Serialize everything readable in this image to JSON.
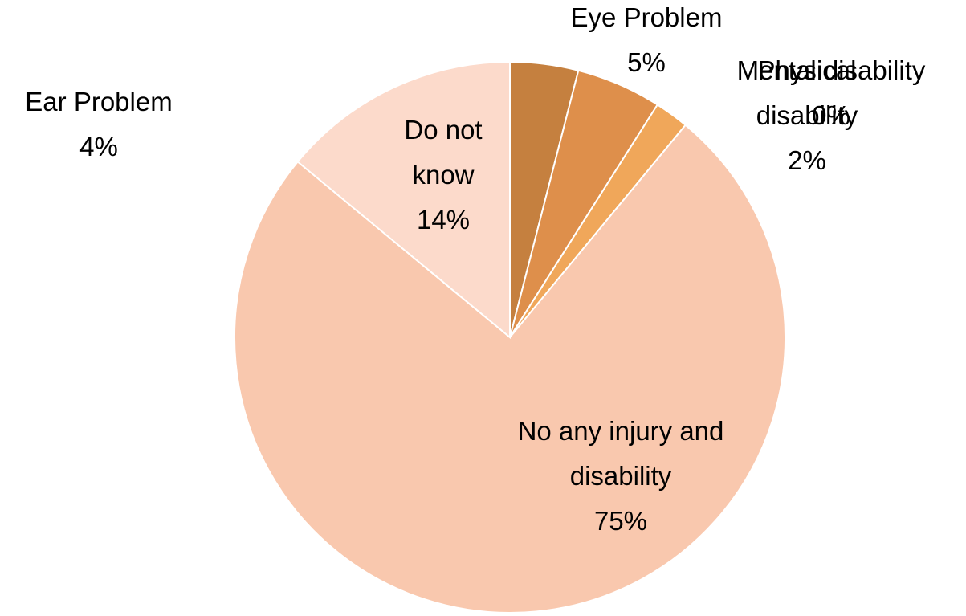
{
  "chart_data": {
    "type": "pie",
    "categories": [
      "Ear Problem",
      "Eye Problem",
      "Mental disability",
      "Physical disability",
      "No any injury and disability",
      "Do not know"
    ],
    "values": [
      4,
      5,
      0,
      2,
      75,
      14
    ],
    "value_labels": [
      "4%",
      "5%",
      "0%",
      "2%",
      "75%",
      "14%"
    ],
    "colors": [
      "#c5803f",
      "#de8f4b",
      "#e89b52",
      "#f0a75a",
      "#f9c8ae",
      "#fcdacb"
    ]
  }
}
